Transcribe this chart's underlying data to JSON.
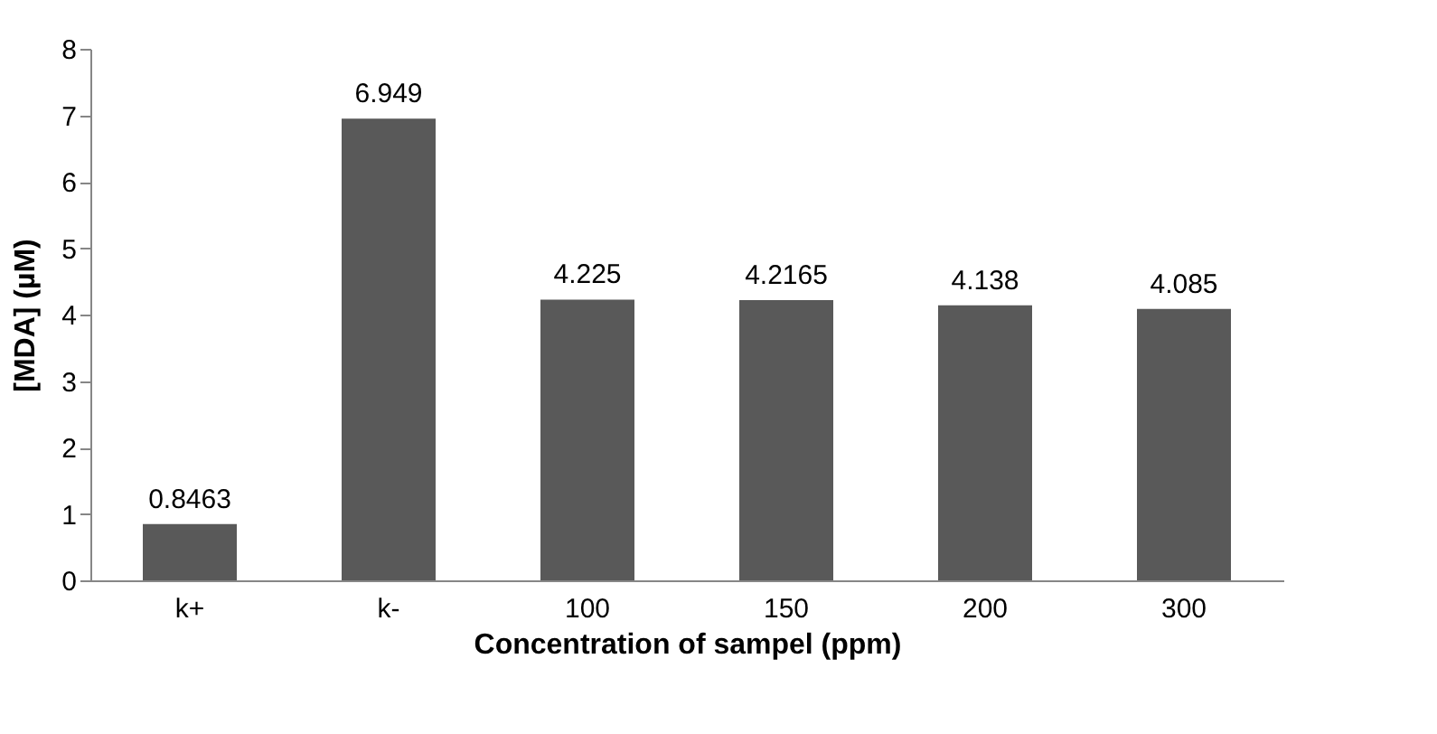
{
  "chart_data": {
    "type": "bar",
    "xlabel": "Concentration of  sampel (ppm)",
    "ylabel": "[MDA] (µM)",
    "categories": [
      "k+",
      "k-",
      "100",
      "150",
      "200",
      "300"
    ],
    "values": [
      0.8463,
      6.949,
      4.225,
      4.2165,
      4.138,
      4.085
    ],
    "color": "#595959",
    "ylim": [
      0,
      8
    ],
    "yticks": [
      0,
      1,
      2,
      3,
      4,
      5,
      6,
      7,
      8
    ],
    "grid": false,
    "data_labels": true
  }
}
